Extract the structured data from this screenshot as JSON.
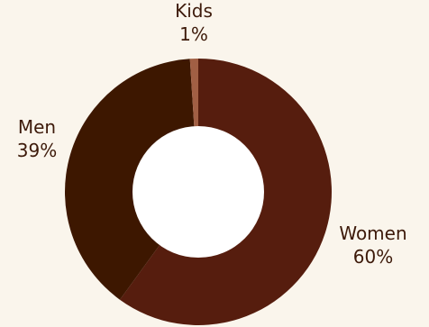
{
  "chart_data": {
    "type": "pie",
    "variant": "donut",
    "legend": "none",
    "slices": [
      {
        "label": "Women",
        "value": 60,
        "value_label": "60%",
        "color": "#561d0e"
      },
      {
        "label": "Men",
        "value": 39,
        "value_label": "39%",
        "color": "#3d1700"
      },
      {
        "label": "Kids",
        "value": 1,
        "value_label": "1%",
        "color": "#a15f44"
      }
    ],
    "colors": {
      "background": "#faf5ec",
      "hole": "#ffffff",
      "label_text": "#3d1a0a"
    }
  }
}
